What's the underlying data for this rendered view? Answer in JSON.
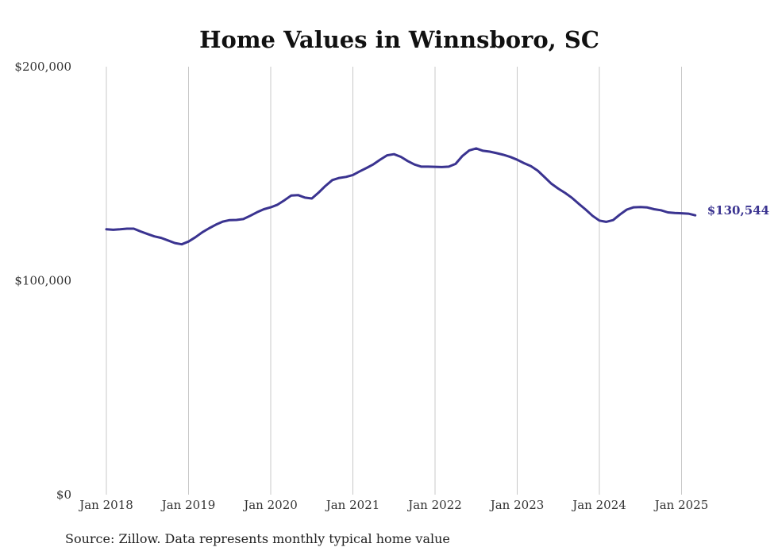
{
  "chart_data": {
    "type": "line",
    "title": "Home Values in Winnsboro, SC",
    "xlabel": "",
    "ylabel": "",
    "ylim": [
      0,
      200000
    ],
    "yticks": [
      0,
      100000,
      200000
    ],
    "ytick_labels": [
      "$0",
      "$100,000",
      "$200,000"
    ],
    "xlim": [
      "2018-01",
      "2025-03"
    ],
    "xtick_labels": [
      "Jan 2018",
      "Jan 2019",
      "Jan 2020",
      "Jan 2021",
      "Jan 2022",
      "Jan 2023",
      "Jan 2024",
      "Jan 2025"
    ],
    "grid": "vertical",
    "line_color": "#3a3390",
    "end_label": "$130,544",
    "source": "Source: Zillow. Data represents monthly typical home value",
    "x": [
      "2018-01",
      "2018-02",
      "2018-03",
      "2018-04",
      "2018-05",
      "2018-06",
      "2018-07",
      "2018-08",
      "2018-09",
      "2018-10",
      "2018-11",
      "2018-12",
      "2019-01",
      "2019-02",
      "2019-03",
      "2019-04",
      "2019-05",
      "2019-06",
      "2019-07",
      "2019-08",
      "2019-09",
      "2019-10",
      "2019-11",
      "2019-12",
      "2020-01",
      "2020-02",
      "2020-03",
      "2020-04",
      "2020-05",
      "2020-06",
      "2020-07",
      "2020-08",
      "2020-09",
      "2020-10",
      "2020-11",
      "2020-12",
      "2021-01",
      "2021-02",
      "2021-03",
      "2021-04",
      "2021-05",
      "2021-06",
      "2021-07",
      "2021-08",
      "2021-09",
      "2021-10",
      "2021-11",
      "2021-12",
      "2022-01",
      "2022-02",
      "2022-03",
      "2022-04",
      "2022-05",
      "2022-06",
      "2022-07",
      "2022-08",
      "2022-09",
      "2022-10",
      "2022-11",
      "2022-12",
      "2023-01",
      "2023-02",
      "2023-03",
      "2023-04",
      "2023-05",
      "2023-06",
      "2023-07",
      "2023-08",
      "2023-09",
      "2023-10",
      "2023-11",
      "2023-12",
      "2024-01",
      "2024-02",
      "2024-03",
      "2024-04",
      "2024-05",
      "2024-06",
      "2024-07",
      "2024-08",
      "2024-09",
      "2024-10",
      "2024-11",
      "2024-12",
      "2025-01",
      "2025-02",
      "2025-03"
    ],
    "series": [
      {
        "values": [
          124000,
          123800,
          124000,
          124300,
          124300,
          123000,
          121800,
          120700,
          120000,
          118800,
          117600,
          117000,
          118300,
          120300,
          122600,
          124500,
          126200,
          127600,
          128300,
          128400,
          128800,
          130300,
          132000,
          133400,
          134300,
          135500,
          137600,
          139800,
          140000,
          138800,
          138400,
          141200,
          144300,
          147000,
          148000,
          148500,
          149400,
          151100,
          152700,
          154400,
          156600,
          158600,
          159100,
          157900,
          155900,
          154300,
          153300,
          153300,
          153200,
          153100,
          153300,
          154600,
          158300,
          160900,
          161800,
          160700,
          160300,
          159600,
          158800,
          157800,
          156500,
          154900,
          153500,
          151400,
          148400,
          145300,
          143000,
          141000,
          138700,
          135900,
          133200,
          130300,
          128100,
          127500,
          128300,
          130900,
          133200,
          134300,
          134400,
          134200,
          133400,
          132900,
          131900,
          131600,
          131500,
          131300,
          130544
        ]
      }
    ]
  }
}
